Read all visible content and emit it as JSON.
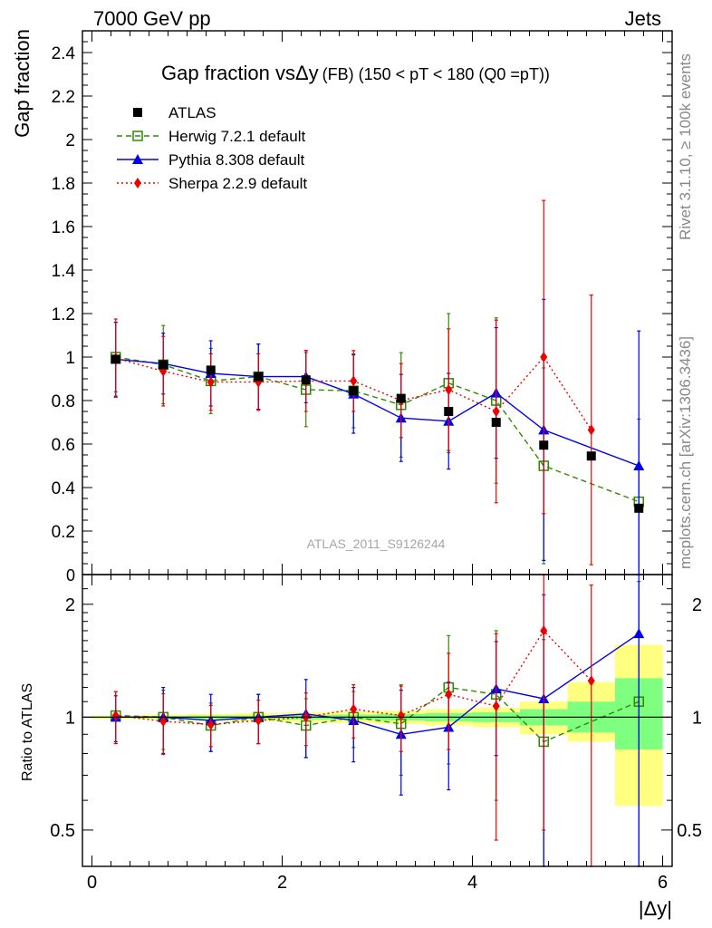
{
  "header": {
    "left": "7000 GeV pp",
    "right": "Jets"
  },
  "side_text": {
    "rivet": "Rivet 3.1.10, ≥ 100k events",
    "mcplots": "mcplots.cern.ch [arXiv:1306.3436]"
  },
  "colors": {
    "data": "#000000",
    "herwig": "#2e8b00",
    "pythia": "#0000ee",
    "sherpa": "#ee0000",
    "band_outer": "#ffff80",
    "band_inner": "#7fff7f"
  },
  "chart_data": {
    "type": "scatter",
    "title": "Gap fraction vsΔy",
    "title_suffix": "(FB) (150 < pT < 180 (Q0 =pT))",
    "analysis_label": "ATLAS_2011_S9126244",
    "xlabel": "|Δy|",
    "ylabel_main": "Gap fraction",
    "ylabel_ratio": "Ratio to ATLAS",
    "xlim": [
      -0.1,
      6.1
    ],
    "ylim_main": [
      0,
      2.5
    ],
    "ylim_ratio": [
      0.4,
      2.4
    ],
    "ratio_scale": "log",
    "x_ticks": [
      0,
      2,
      4,
      6
    ],
    "y_ticks_main": [
      "0.2",
      "0.4",
      "0.6",
      "0.8",
      "1",
      "1.2",
      "1.4",
      "1.6",
      "1.8",
      "2",
      "2.2",
      "2.4"
    ],
    "y_ticks_ratio": [
      "0.5",
      "1",
      "2"
    ],
    "legend_position": "top-left",
    "x": [
      0.25,
      0.75,
      1.25,
      1.75,
      2.25,
      2.75,
      3.25,
      3.75,
      4.25,
      4.75,
      5.25,
      5.75
    ],
    "data_bands": [
      {
        "lo": 0.995,
        "hi": 1.005,
        "lo2": 0.99,
        "hi2": 1.01
      },
      {
        "lo": 0.993,
        "hi": 1.007,
        "lo2": 0.985,
        "hi2": 1.015
      },
      {
        "lo": 0.99,
        "hi": 1.01,
        "lo2": 0.98,
        "hi2": 1.02
      },
      {
        "lo": 0.99,
        "hi": 1.01,
        "lo2": 0.975,
        "hi2": 1.025
      },
      {
        "lo": 0.985,
        "hi": 1.015,
        "lo2": 0.97,
        "hi2": 1.03
      },
      {
        "lo": 0.985,
        "hi": 1.015,
        "lo2": 0.965,
        "hi2": 1.035
      },
      {
        "lo": 0.98,
        "hi": 1.02,
        "lo2": 0.96,
        "hi2": 1.04
      },
      {
        "lo": 0.975,
        "hi": 1.025,
        "lo2": 0.95,
        "hi2": 1.05
      },
      {
        "lo": 0.97,
        "hi": 1.03,
        "lo2": 0.94,
        "hi2": 1.06
      },
      {
        "lo": 0.95,
        "hi": 1.05,
        "lo2": 0.9,
        "hi2": 1.1
      },
      {
        "lo": 0.91,
        "hi": 1.1,
        "lo2": 0.86,
        "hi2": 1.24
      },
      {
        "lo": 0.82,
        "hi": 1.27,
        "lo2": 0.58,
        "hi2": 1.56
      }
    ],
    "series": [
      {
        "name": "ATLAS",
        "key": "data",
        "marker": "square-filled",
        "line": "none",
        "y": [
          0.99,
          0.965,
          0.94,
          0.91,
          0.895,
          0.845,
          0.81,
          0.75,
          0.7,
          0.595,
          0.545,
          0.305
        ],
        "err": [
          0.005,
          0.005,
          0.006,
          0.006,
          0.008,
          0.01,
          0.012,
          0.015,
          0.02,
          0.03,
          0.035,
          0.05
        ]
      },
      {
        "name": "Herwig 7.2.1 default",
        "key": "herwig",
        "marker": "square-open",
        "line": "dashed",
        "y": [
          1.0,
          0.965,
          0.89,
          0.91,
          0.85,
          0.845,
          0.78,
          0.88,
          0.8,
          0.5,
          null,
          0.335
        ],
        "err": [
          0.16,
          0.18,
          0.15,
          0.15,
          0.17,
          0.17,
          0.24,
          0.32,
          0.38,
          0.45,
          null,
          0.38
        ],
        "ratio": [
          1.01,
          1.0,
          0.95,
          1.0,
          0.95,
          1.0,
          0.96,
          1.2,
          1.15,
          0.86,
          null,
          1.1
        ],
        "ratio_err": [
          0.16,
          0.18,
          0.14,
          0.15,
          0.17,
          0.17,
          0.26,
          0.45,
          0.55,
          0.75,
          null,
          1.2
        ]
      },
      {
        "name": "Pythia 8.308 default",
        "key": "pythia",
        "marker": "triangle-filled",
        "line": "solid",
        "y": [
          0.99,
          0.97,
          0.925,
          0.91,
          0.91,
          0.83,
          0.72,
          0.705,
          0.835,
          0.665,
          null,
          0.5
        ],
        "err": [
          0.17,
          0.14,
          0.15,
          0.15,
          0.12,
          0.18,
          0.2,
          0.22,
          0.3,
          0.6,
          null,
          0.62
        ],
        "ratio": [
          1.0,
          1.0,
          0.98,
          1.0,
          1.02,
          0.98,
          0.9,
          0.94,
          1.19,
          1.12,
          null,
          1.67
        ],
        "ratio_err": [
          0.14,
          0.2,
          0.17,
          0.15,
          0.24,
          0.22,
          0.28,
          0.3,
          0.4,
          1.0,
          null,
          2.0
        ]
      },
      {
        "name": "Sherpa 2.2.9 default",
        "key": "sherpa",
        "marker": "diamond-filled",
        "line": "dotted",
        "y": [
          0.995,
          0.935,
          0.885,
          0.885,
          0.89,
          0.89,
          0.8,
          0.85,
          0.75,
          1.0,
          0.665,
          null
        ],
        "err": [
          0.18,
          0.16,
          0.13,
          0.13,
          0.14,
          0.14,
          0.17,
          0.28,
          0.42,
          0.72,
          0.62,
          null
        ],
        "ratio": [
          1.01,
          0.975,
          0.955,
          0.98,
          1.0,
          1.05,
          1.01,
          1.15,
          1.07,
          1.7,
          1.25,
          null
        ],
        "ratio_err": [
          0.16,
          0.18,
          0.12,
          0.13,
          0.16,
          0.17,
          0.2,
          0.33,
          0.6,
          1.2,
          1.0,
          null
        ]
      }
    ]
  }
}
